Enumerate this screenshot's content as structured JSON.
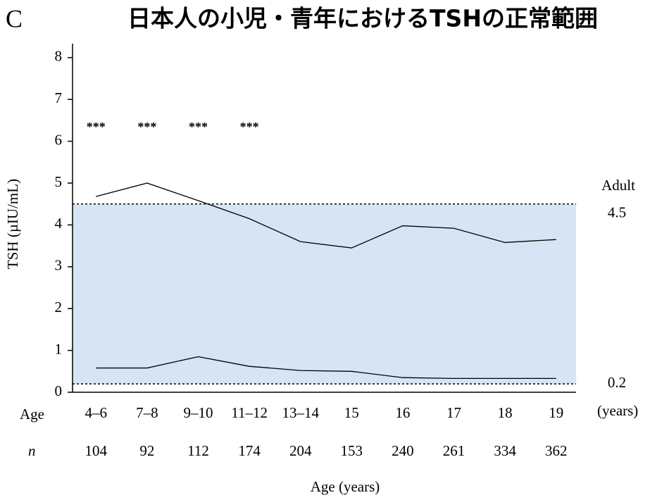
{
  "chart_data": {
    "type": "line",
    "panel_label": "C",
    "title": "日本人の小児・青年におけるTSHの正常範囲",
    "ylabel": "TSH (µIU/mL)",
    "xlabel": "Age (years)",
    "age_label": "Age",
    "unit_label": "(years)",
    "n_label": "n",
    "categories": [
      "4–6",
      "7–8",
      "9–10",
      "11–12",
      "13–14",
      "15",
      "16",
      "17",
      "18",
      "19"
    ],
    "n": [
      104,
      92,
      112,
      174,
      204,
      153,
      240,
      261,
      334,
      362
    ],
    "significance": [
      "***",
      "***",
      "***",
      "***",
      null,
      null,
      null,
      null,
      null,
      null
    ],
    "series": [
      {
        "color": "#000000",
        "values": [
          4.68,
          5.0,
          4.58,
          4.15,
          3.6,
          3.45,
          3.98,
          3.92,
          3.58,
          3.65
        ]
      },
      {
        "color": "#000000",
        "values": [
          0.58,
          0.58,
          0.85,
          0.62,
          0.52,
          0.5,
          0.35,
          0.33,
          0.33,
          0.33
        ]
      }
    ],
    "reference": {
      "label": "Adult",
      "lower": 0.2,
      "upper": 4.5,
      "color": "#d6e4f3"
    },
    "ylim": [
      0,
      8.4
    ],
    "yticks": [
      0,
      1,
      2,
      3,
      4,
      5,
      6,
      7,
      8
    ]
  }
}
